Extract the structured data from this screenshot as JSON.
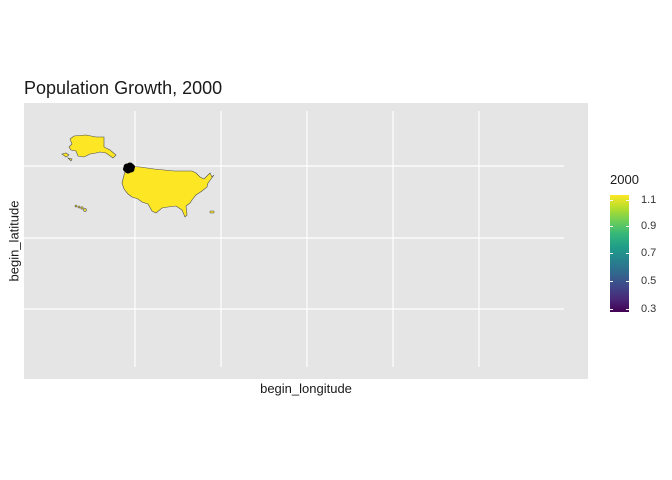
{
  "title": "Population Growth, 2000",
  "xlabel": "begin_longitude",
  "ylabel": "begin_latitude",
  "legend": {
    "title": "2000",
    "labels": [
      "1.1",
      "0.9",
      "0.7",
      "0.5",
      "0.3"
    ],
    "palette": "viridis"
  },
  "colors": {
    "panel_background": "#e5e5e5",
    "grid": "#ffffff",
    "state_fill": "#fde725",
    "state_border": "#4d4d4d",
    "points": "#000000"
  },
  "map": {
    "regions": [
      "contiguous-us",
      "alaska",
      "hawaii",
      "puerto-rico"
    ],
    "point_cluster": "black dots near the Pacific Northwest coast"
  }
}
